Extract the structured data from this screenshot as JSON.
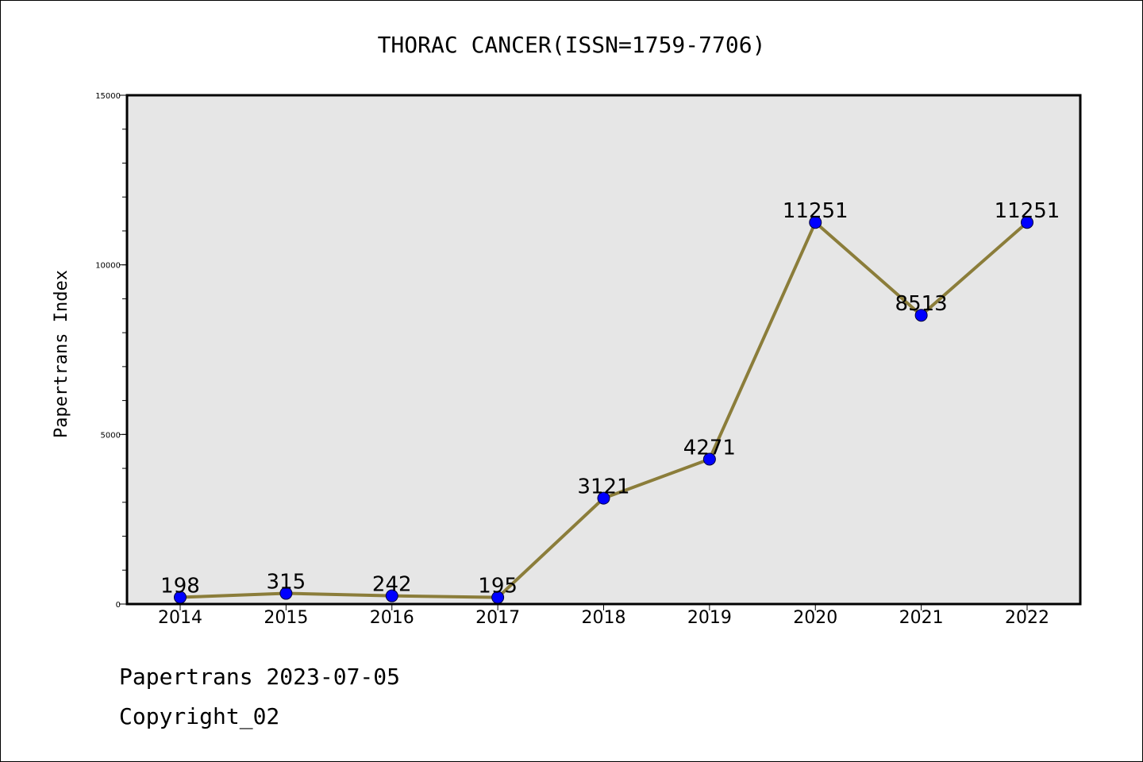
{
  "chart_data": {
    "type": "line",
    "title": "THORAC CANCER(ISSN=1759-7706)",
    "xlabel": "",
    "ylabel": "Papertrans Index",
    "categories": [
      "2014",
      "2015",
      "2016",
      "2017",
      "2018",
      "2019",
      "2020",
      "2021",
      "2022"
    ],
    "series": [
      {
        "values": [
          198,
          315,
          242,
          195,
          3121,
          4271,
          11251,
          8513,
          11251
        ]
      }
    ],
    "ylim": [
      0,
      15000
    ],
    "yticks": [
      "0",
      "5000",
      "10000",
      "15000"
    ],
    "grid": false,
    "colors": {
      "line": "#8b7d3a",
      "marker": "#0000ff",
      "plot_bg": "#e6e6e6"
    }
  },
  "footer": {
    "line1": "Papertrans 2023-07-05",
    "line2": "Copyright_02"
  }
}
